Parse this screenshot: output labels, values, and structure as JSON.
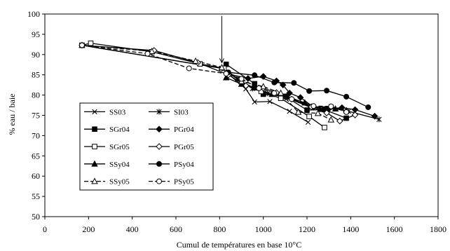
{
  "chart_data": {
    "type": "line",
    "xlabel": "Cumul de températures en base 10°C",
    "ylabel": "% eau / baie",
    "xlim": [
      0,
      1800
    ],
    "ylim": [
      50,
      100
    ],
    "xticks": [
      0,
      200,
      400,
      600,
      800,
      1000,
      1200,
      1400,
      1600,
      1800
    ],
    "yticks": [
      50,
      55,
      60,
      65,
      70,
      75,
      80,
      85,
      90,
      95,
      100
    ],
    "grid": false,
    "legend_position": "left",
    "annotation": {
      "type": "arrow",
      "x": 810,
      "y_from": 99.5,
      "y_to": 88
    },
    "series": [
      {
        "name": "SS03",
        "marker": "x",
        "dash": false,
        "points": [
          [
            170,
            92.3
          ],
          [
            810,
            86.6
          ],
          [
            920,
            81.5
          ],
          [
            960,
            78.3
          ],
          [
            1030,
            78.4
          ],
          [
            1120,
            76.0
          ],
          [
            1205,
            73.3
          ]
        ]
      },
      {
        "name": "SI03",
        "marker": "star",
        "dash": false,
        "points": [
          [
            170,
            92.3
          ],
          [
            810,
            86.6
          ],
          [
            880,
            84.0
          ],
          [
            950,
            81.6
          ],
          [
            1020,
            80.4
          ],
          [
            1110,
            79.3
          ],
          [
            1210,
            77.1
          ],
          [
            1310,
            77.1
          ],
          [
            1390,
            76.0
          ],
          [
            1530,
            74.0
          ]
        ]
      },
      {
        "name": "SGr04",
        "marker": "square-filled",
        "dash": false,
        "points": [
          [
            830,
            87.6
          ],
          [
            960,
            82.8
          ],
          [
            1000,
            80.2
          ],
          [
            1100,
            79.7
          ],
          [
            1200,
            76.3
          ],
          [
            1280,
            76.4
          ],
          [
            1380,
            74.3
          ]
        ]
      },
      {
        "name": "PGr04",
        "marker": "diamond-filled",
        "dash": false,
        "points": [
          [
            840,
            85.2
          ],
          [
            930,
            84.1
          ],
          [
            1000,
            84.6
          ],
          [
            1060,
            83.5
          ],
          [
            1090,
            82.5
          ],
          [
            1120,
            80.5
          ],
          [
            1170,
            79.4
          ],
          [
            1230,
            77.0
          ],
          [
            1300,
            76.6
          ],
          [
            1360,
            76.9
          ],
          [
            1420,
            76.4
          ],
          [
            1510,
            74.8
          ]
        ]
      },
      {
        "name": "SGr05",
        "marker": "square-open",
        "dash": false,
        "points": [
          [
            170,
            92.3
          ],
          [
            210,
            92.8
          ],
          [
            490,
            90.7
          ],
          [
            710,
            87.7
          ],
          [
            820,
            86.6
          ],
          [
            900,
            83.3
          ],
          [
            990,
            80.9
          ],
          [
            1080,
            79.2
          ],
          [
            1210,
            74.7
          ],
          [
            1280,
            72.0
          ]
        ]
      },
      {
        "name": "PGr05",
        "marker": "diamond-open",
        "dash": false,
        "points": [
          [
            170,
            92.3
          ],
          [
            500,
            91.0
          ],
          [
            700,
            88.0
          ],
          [
            840,
            85.0
          ],
          [
            920,
            82.3
          ],
          [
            1000,
            81.7
          ],
          [
            1060,
            80.6
          ],
          [
            1130,
            79.0
          ],
          [
            1220,
            77.1
          ],
          [
            1290,
            75.6
          ],
          [
            1350,
            73.6
          ],
          [
            1420,
            75.1
          ]
        ]
      },
      {
        "name": "SSy04",
        "marker": "triangle-filled",
        "dash": false,
        "points": [
          [
            830,
            84.3
          ],
          [
            900,
            82.7
          ],
          [
            960,
            81.8
          ],
          [
            1040,
            80.2
          ],
          [
            1110,
            79.6
          ],
          [
            1190,
            78.1
          ],
          [
            1260,
            76.5
          ],
          [
            1330,
            76.6
          ],
          [
            1380,
            76.2
          ]
        ]
      },
      {
        "name": "PSy04",
        "marker": "circle-filled",
        "dash": false,
        "points": [
          [
            840,
            85.6
          ],
          [
            960,
            84.9
          ],
          [
            1050,
            83.1
          ],
          [
            1140,
            83.0
          ],
          [
            1210,
            81.0
          ],
          [
            1290,
            81.1
          ],
          [
            1380,
            79.6
          ],
          [
            1480,
            77.0
          ]
        ]
      },
      {
        "name": "SSy05",
        "marker": "triangle-open",
        "dash": true,
        "points": [
          [
            170,
            92.3
          ],
          [
            490,
            90.8
          ],
          [
            690,
            88.4
          ],
          [
            810,
            86.8
          ],
          [
            900,
            83.4
          ],
          [
            1000,
            82.1
          ],
          [
            1080,
            80.5
          ],
          [
            1160,
            75.8
          ],
          [
            1250,
            75.5
          ],
          [
            1310,
            73.9
          ]
        ]
      },
      {
        "name": "PSy05",
        "marker": "circle-open",
        "dash": true,
        "points": [
          [
            170,
            92.3
          ],
          [
            470,
            90.2
          ],
          [
            660,
            86.6
          ],
          [
            830,
            85.3
          ],
          [
            900,
            84.0
          ],
          [
            980,
            81.7
          ],
          [
            1050,
            80.5
          ],
          [
            1130,
            79.0
          ],
          [
            1230,
            77.3
          ],
          [
            1310,
            77.2
          ],
          [
            1380,
            75.8
          ]
        ]
      }
    ]
  }
}
